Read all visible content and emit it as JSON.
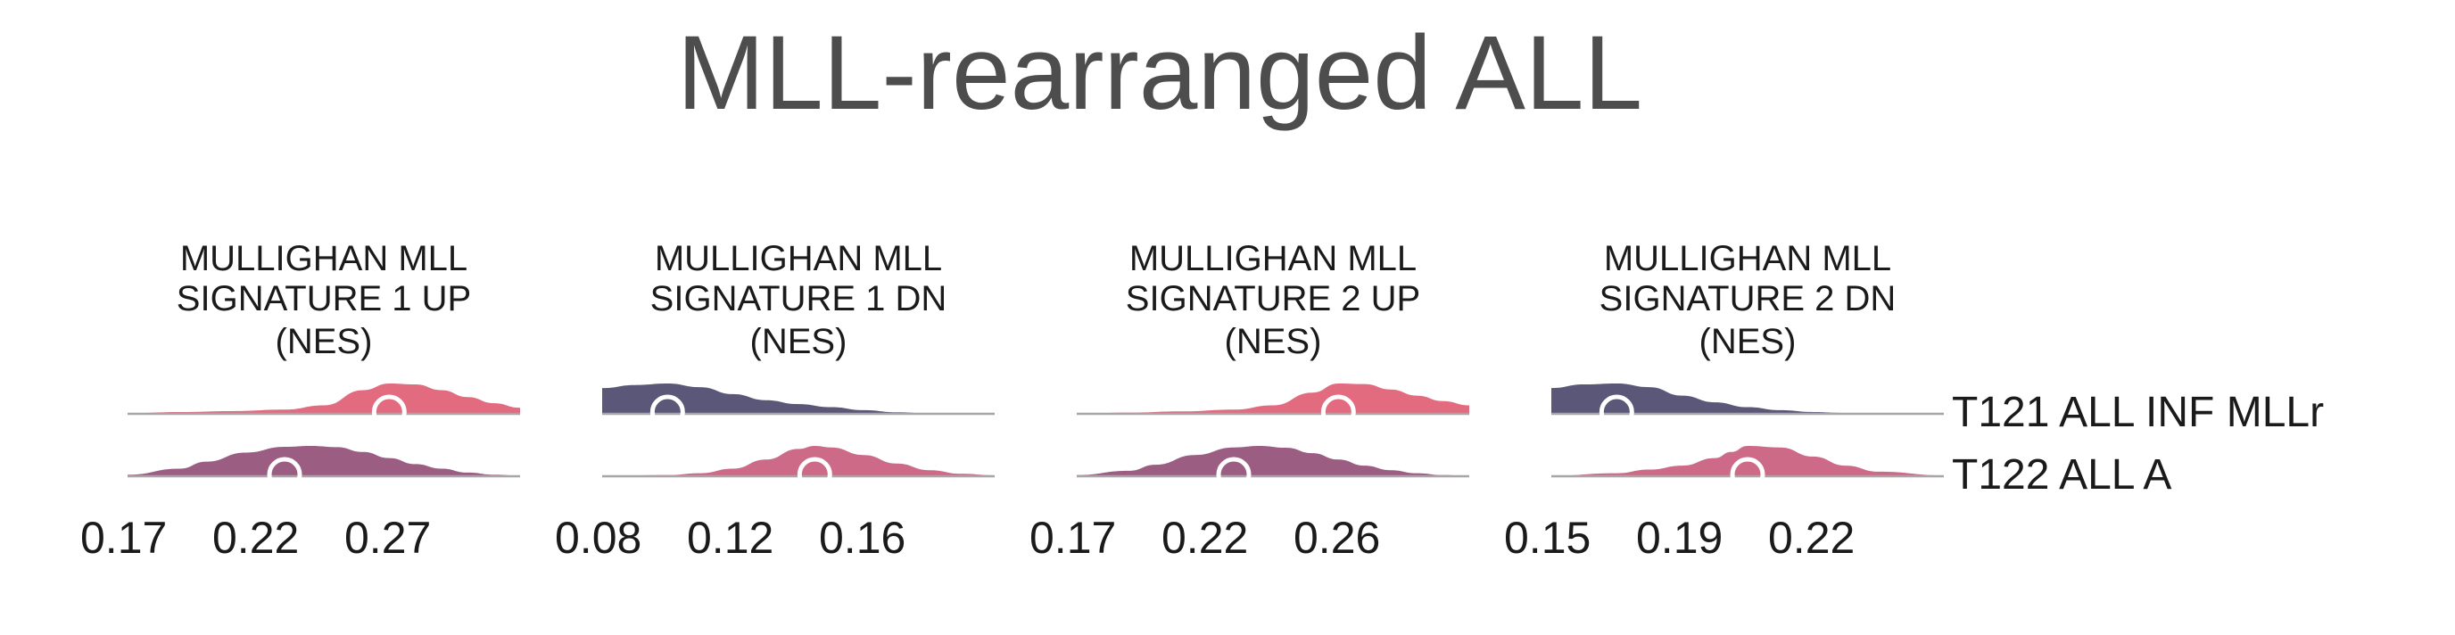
{
  "title": "MLL-rearranged ALL",
  "rows": [
    "T121 ALL INF MLLr",
    "T122 ALL A"
  ],
  "colors": {
    "pink": "#e26b80",
    "purple": "#5b5778",
    "mauve": "#9c5d83",
    "rose": "#cc6a88",
    "baseline": "#a6a6a6",
    "marker": "#ffffff"
  },
  "chart_data": [
    {
      "type": "ridgeline",
      "title": [
        "MULLIGHAN MLL",
        "SIGNATURE 1 UP",
        "(NES)"
      ],
      "xticks": [
        "0.17",
        "0.22",
        "0.27"
      ],
      "xlim": [
        0.15,
        0.3
      ],
      "series": [
        {
          "row": "T121 ALL INF MLLr",
          "color": "pink",
          "x": [
            0.15,
            0.17,
            0.19,
            0.21,
            0.225,
            0.24,
            0.25,
            0.26,
            0.27,
            0.28,
            0.29,
            0.3
          ],
          "density": [
            0.02,
            0.06,
            0.09,
            0.14,
            0.28,
            0.78,
            1.0,
            0.97,
            0.78,
            0.55,
            0.35,
            0.2
          ],
          "marker": 0.25
        },
        {
          "row": "T122 ALL A",
          "color": "mauve",
          "x": [
            0.15,
            0.17,
            0.18,
            0.195,
            0.21,
            0.22,
            0.23,
            0.24,
            0.25,
            0.26,
            0.27,
            0.28,
            0.29,
            0.3
          ],
          "density": [
            0.05,
            0.25,
            0.48,
            0.78,
            0.97,
            1.0,
            0.96,
            0.8,
            0.6,
            0.4,
            0.25,
            0.12,
            0.05,
            0.02
          ],
          "marker": 0.21
        }
      ]
    },
    {
      "type": "ridgeline",
      "title": [
        "MULLIGHAN MLL",
        "SIGNATURE 1 DN",
        "(NES)"
      ],
      "xticks": [
        "0.08",
        "0.12",
        "0.16"
      ],
      "xlim": [
        0.08,
        0.2
      ],
      "series": [
        {
          "row": "T121 ALL INF MLLr",
          "color": "purple",
          "x": [
            0.08,
            0.09,
            0.1,
            0.11,
            0.12,
            0.13,
            0.14,
            0.15,
            0.16,
            0.17,
            0.18,
            0.2
          ],
          "density": [
            0.85,
            0.95,
            1.0,
            0.88,
            0.65,
            0.45,
            0.32,
            0.22,
            0.12,
            0.05,
            0.02,
            0.01
          ],
          "marker": 0.1
        },
        {
          "row": "T122 ALL A",
          "color": "rose",
          "x": [
            0.08,
            0.1,
            0.11,
            0.12,
            0.13,
            0.14,
            0.145,
            0.15,
            0.16,
            0.17,
            0.18,
            0.19,
            0.2
          ],
          "density": [
            0.01,
            0.04,
            0.1,
            0.25,
            0.55,
            0.9,
            1.0,
            0.95,
            0.7,
            0.42,
            0.2,
            0.08,
            0.03
          ],
          "marker": 0.145
        }
      ]
    },
    {
      "type": "ridgeline",
      "title": [
        "MULLIGHAN MLL",
        "SIGNATURE 2 UP",
        "(NES)"
      ],
      "xticks": [
        "0.17",
        "0.22",
        "0.26"
      ],
      "xlim": [
        0.15,
        0.3
      ],
      "series": [
        {
          "row": "T121 ALL INF MLLr",
          "color": "pink",
          "x": [
            0.15,
            0.17,
            0.19,
            0.21,
            0.225,
            0.24,
            0.25,
            0.26,
            0.27,
            0.28,
            0.29,
            0.3
          ],
          "density": [
            0.01,
            0.04,
            0.08,
            0.14,
            0.28,
            0.7,
            1.0,
            0.98,
            0.8,
            0.6,
            0.42,
            0.28
          ],
          "marker": 0.25
        },
        {
          "row": "T122 ALL A",
          "color": "mauve",
          "x": [
            0.15,
            0.17,
            0.18,
            0.195,
            0.21,
            0.22,
            0.23,
            0.24,
            0.25,
            0.26,
            0.27,
            0.28,
            0.29,
            0.3
          ],
          "density": [
            0.04,
            0.18,
            0.38,
            0.7,
            0.95,
            1.0,
            0.94,
            0.76,
            0.55,
            0.35,
            0.2,
            0.1,
            0.04,
            0.01
          ],
          "marker": 0.21
        }
      ]
    },
    {
      "type": "ridgeline",
      "title": [
        "MULLIGHAN MLL",
        "SIGNATURE 2 DN",
        "(NES)"
      ],
      "xticks": [
        "0.15",
        "0.19",
        "0.22"
      ],
      "xlim": [
        0.14,
        0.26
      ],
      "series": [
        {
          "row": "T121 ALL INF MLLr",
          "color": "purple",
          "x": [
            0.14,
            0.15,
            0.16,
            0.17,
            0.18,
            0.19,
            0.2,
            0.21,
            0.22,
            0.23,
            0.24,
            0.26
          ],
          "density": [
            0.85,
            0.97,
            1.0,
            0.88,
            0.6,
            0.38,
            0.22,
            0.12,
            0.06,
            0.03,
            0.01,
            0.0
          ],
          "marker": 0.16
        },
        {
          "row": "T122 ALL A",
          "color": "rose",
          "x": [
            0.14,
            0.16,
            0.17,
            0.18,
            0.19,
            0.195,
            0.2,
            0.21,
            0.22,
            0.23,
            0.24,
            0.26
          ],
          "density": [
            0.02,
            0.1,
            0.22,
            0.35,
            0.6,
            0.8,
            1.0,
            0.95,
            0.65,
            0.35,
            0.15,
            0.03
          ],
          "marker": 0.2
        }
      ]
    }
  ]
}
